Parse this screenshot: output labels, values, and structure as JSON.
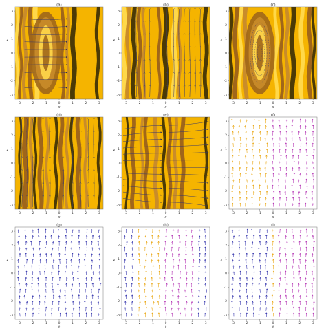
{
  "figure": {
    "panels": [
      {
        "label": "(a)",
        "kind": "contour",
        "x_label": "x",
        "y_label": "z",
        "xticks": [
          -3,
          -2,
          -1,
          0,
          1,
          2,
          3
        ],
        "yticks": [
          -3,
          -2,
          -1,
          0,
          1,
          2,
          3
        ]
      },
      {
        "label": "(b)",
        "kind": "contour",
        "x_label": "x",
        "y_label": "z",
        "xticks": [
          -3,
          -2,
          -1,
          0,
          1,
          2,
          3
        ],
        "yticks": [
          -3,
          -2,
          -1,
          0,
          1,
          2,
          3
        ]
      },
      {
        "label": "(c)",
        "kind": "contour",
        "x_label": "x",
        "y_label": "z",
        "xticks": [
          -3,
          -2,
          -1,
          0,
          1,
          2,
          3
        ],
        "yticks": [
          -3,
          -2,
          -1,
          0,
          1,
          2,
          3
        ]
      },
      {
        "label": "(d)",
        "kind": "contour",
        "x_label": "x",
        "y_label": "z",
        "xticks": [
          -3,
          -2,
          -1,
          0,
          1,
          2,
          3
        ],
        "yticks": [
          -3,
          -2,
          -1,
          0,
          1,
          2,
          3
        ]
      },
      {
        "label": "(e)",
        "kind": "contour",
        "x_label": "x",
        "y_label": "z",
        "xticks": [
          -3,
          -2,
          -1,
          0,
          1,
          2,
          3
        ],
        "yticks": [
          -3,
          -2,
          -1,
          0,
          1,
          2,
          3
        ]
      },
      {
        "label": "(f)",
        "kind": "vector",
        "x_label": "x",
        "y_label": "z",
        "xticks": [
          -3,
          -2,
          -1,
          0,
          1,
          2,
          3
        ],
        "yticks": [
          -3,
          -2,
          -1,
          0,
          1,
          2,
          3
        ]
      },
      {
        "label": "(g)",
        "kind": "vector",
        "x_label": "t",
        "y_label": "z",
        "xticks": [
          -3,
          -2,
          -1,
          0,
          1,
          2,
          3
        ],
        "yticks": [
          -3,
          -2,
          -1,
          0,
          1,
          2,
          3
        ]
      },
      {
        "label": "(h)",
        "kind": "vector",
        "x_label": "t",
        "y_label": "z",
        "xticks": [
          -3,
          -2,
          -1,
          0,
          1,
          2,
          3
        ],
        "yticks": [
          -3,
          -2,
          -1,
          0,
          1,
          2,
          3
        ]
      },
      {
        "label": "(i)",
        "kind": "vector",
        "x_label": "t",
        "y_label": "z",
        "xticks": [
          -3,
          -2,
          -1,
          0,
          1,
          2,
          3
        ],
        "yticks": [
          -3,
          -2,
          -1,
          0,
          1,
          2,
          3
        ]
      }
    ]
  },
  "colors": {
    "contour_base": "#f5b400",
    "band_dark": "#4b3a06",
    "band_brown": "#a0661a",
    "band_tan": "#c98c2a",
    "band_light": "#ffd84a",
    "streamline": "#3a3a6a",
    "arrow_blue": "#2a2aa8",
    "arrow_magenta": "#b02ab0",
    "arrow_orange": "#e8a000"
  },
  "chart_data": [
    {
      "type": "heatmap",
      "title": "(a)",
      "xlabel": "x",
      "ylabel": "z",
      "xlim": [
        -3,
        3
      ],
      "ylim": [
        -3,
        3
      ],
      "pattern": "vertical-bands-with-eye",
      "eye_center_x": -1,
      "streamlines": "horizontal-closed"
    },
    {
      "type": "heatmap",
      "title": "(b)",
      "xlabel": "x",
      "ylabel": "z",
      "xlim": [
        -3,
        3
      ],
      "ylim": [
        -3,
        3
      ],
      "pattern": "vertical-bands",
      "eye_center_x": -1,
      "streamlines": "vertical"
    },
    {
      "type": "heatmap",
      "title": "(c)",
      "xlabel": "x",
      "ylabel": "z",
      "xlim": [
        -3,
        3
      ],
      "ylim": [
        -3,
        3
      ],
      "pattern": "vertical-bands-with-eye",
      "eye_center_x": -1,
      "streamlines": "closed-loops"
    },
    {
      "type": "heatmap",
      "title": "(d)",
      "xlabel": "x",
      "ylabel": "z",
      "xlim": [
        -3,
        3
      ],
      "ylim": [
        -3,
        3
      ],
      "pattern": "vertical-bands",
      "streamlines": "vertical"
    },
    {
      "type": "heatmap",
      "title": "(e)",
      "xlabel": "x",
      "ylabel": "z",
      "xlim": [
        -3,
        3
      ],
      "ylim": [
        -3,
        3
      ],
      "pattern": "vertical-bands",
      "streamlines": "diverging"
    },
    {
      "type": "scatter",
      "title": "(f)",
      "xlabel": "x",
      "ylabel": "z",
      "xlim": [
        -3,
        3
      ],
      "ylim": [
        -3,
        3
      ],
      "field": "vertical-arrows",
      "colors": [
        "orange",
        "magenta"
      ]
    },
    {
      "type": "scatter",
      "title": "(g)",
      "xlabel": "t",
      "ylabel": "z",
      "xlim": [
        -3,
        3
      ],
      "ylim": [
        -3,
        3
      ],
      "field": "vertical-arrows",
      "colors": [
        "blue"
      ]
    },
    {
      "type": "scatter",
      "title": "(h)",
      "xlabel": "t",
      "ylabel": "z",
      "xlim": [
        -3,
        3
      ],
      "ylim": [
        -3,
        3
      ],
      "field": "vertical-arrows",
      "colors": [
        "blue",
        "orange",
        "magenta"
      ]
    },
    {
      "type": "scatter",
      "title": "(i)",
      "xlabel": "t",
      "ylabel": "z",
      "xlim": [
        -3,
        3
      ],
      "ylim": [
        -3,
        3
      ],
      "field": "vertical-arrows",
      "colors": [
        "blue",
        "magenta",
        "orange"
      ]
    }
  ]
}
